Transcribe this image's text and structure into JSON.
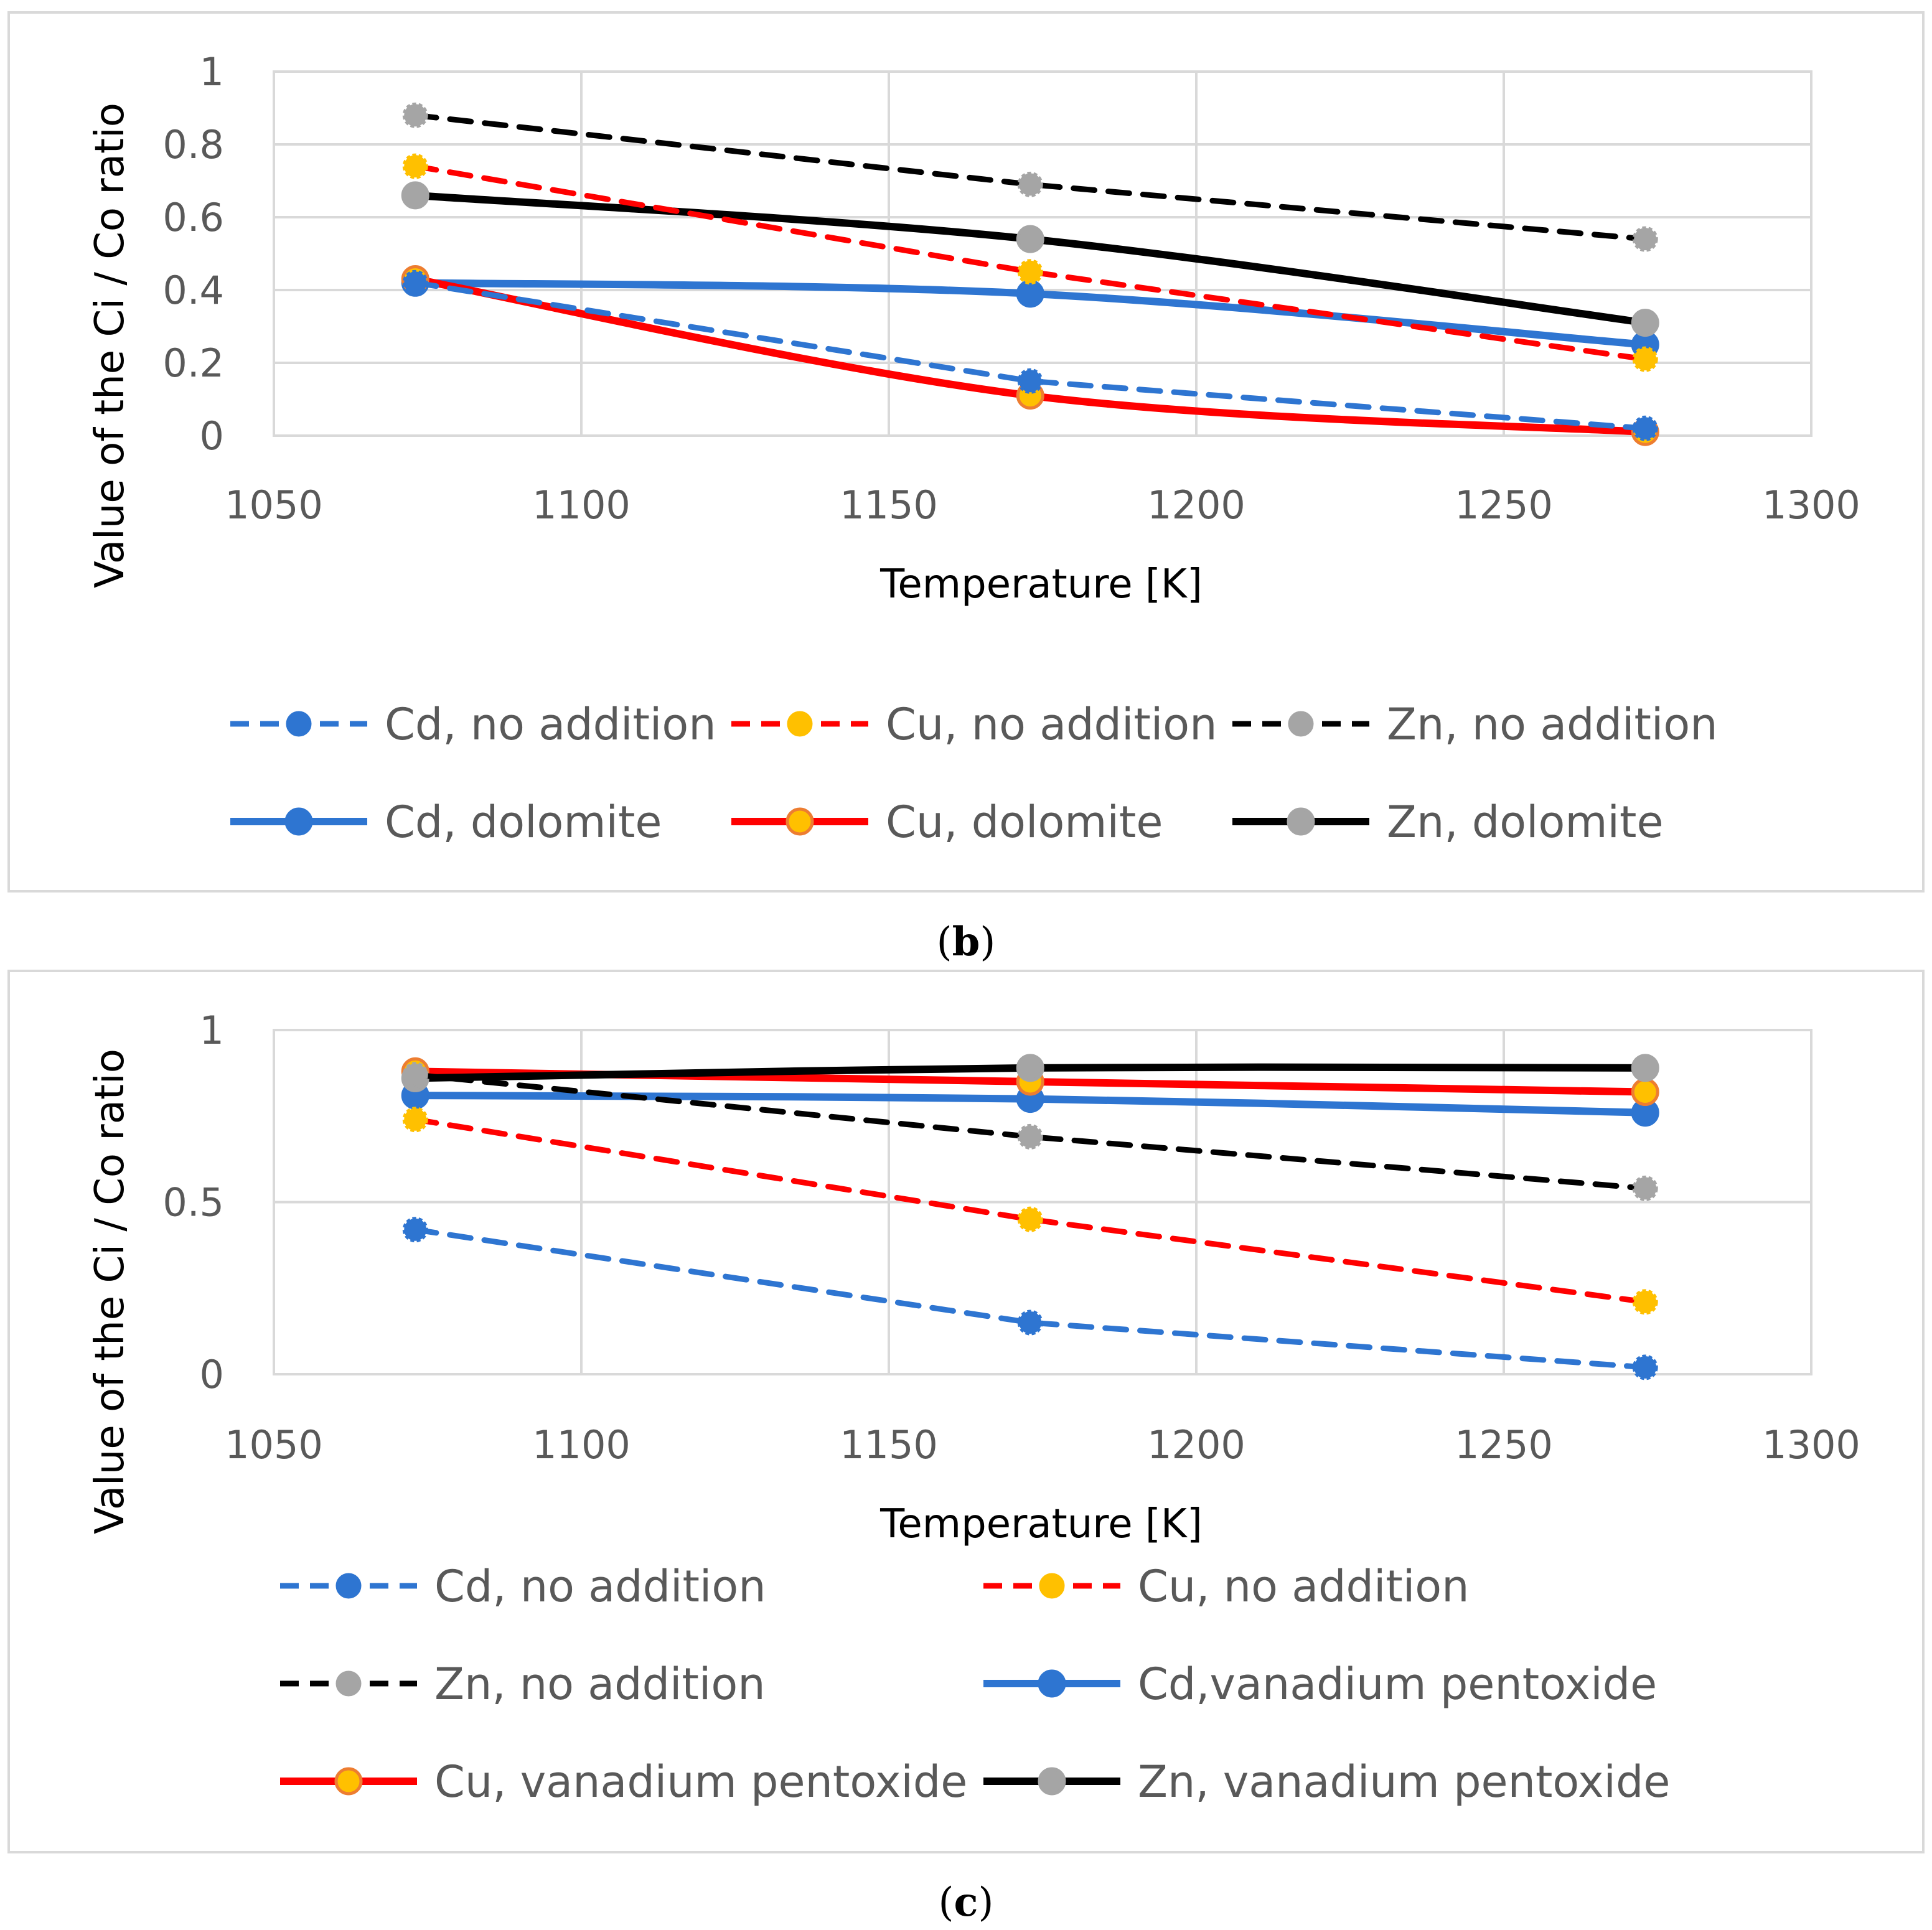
{
  "chart_data": [
    {
      "type": "line",
      "caption_letter": "b",
      "caption_open": "(",
      "caption_close": ")",
      "xlabel": "Temperature [K]",
      "ylabel": "Value of the Ci / Co ratio",
      "xlim": [
        1050,
        1300
      ],
      "ylim": [
        0,
        1
      ],
      "xticks": [
        1050,
        1100,
        1150,
        1200,
        1250,
        1300
      ],
      "yticks": [
        0,
        0.2,
        0.4,
        0.6,
        0.8,
        1
      ],
      "x": [
        1073,
        1173,
        1273
      ],
      "legend_columns": 3,
      "series": [
        {
          "name": "Cd, no addition",
          "values": [
            0.42,
            0.15,
            0.02
          ],
          "color": "#2E75D1",
          "dash": true,
          "marker_fill": "#2E75D1",
          "marker_stroke": "#2E75D1"
        },
        {
          "name": "Cu, no addition",
          "values": [
            0.74,
            0.45,
            0.21
          ],
          "color": "#FF0000",
          "dash": true,
          "marker_fill": "#FFC000",
          "marker_stroke": "#FFC000"
        },
        {
          "name": "Zn, no addition",
          "values": [
            0.88,
            0.69,
            0.54
          ],
          "color": "#000000",
          "dash": true,
          "marker_fill": "#A5A5A5",
          "marker_stroke": "#A5A5A5"
        },
        {
          "name": "Cd, dolomite",
          "values": [
            0.42,
            0.39,
            0.25
          ],
          "color": "#2E75D1",
          "dash": false,
          "marker_fill": "#2E75D1",
          "marker_stroke": "#2E75D1"
        },
        {
          "name": "Cu, dolomite",
          "values": [
            0.43,
            0.11,
            0.01
          ],
          "color": "#FF0000",
          "dash": false,
          "marker_fill": "#FFC000",
          "marker_stroke": "#ED7D31"
        },
        {
          "name": "Zn, dolomite",
          "values": [
            0.66,
            0.54,
            0.31
          ],
          "color": "#000000",
          "dash": false,
          "marker_fill": "#A5A5A5",
          "marker_stroke": "#A5A5A5"
        }
      ]
    },
    {
      "type": "line",
      "caption_letter": "c",
      "caption_open": "(",
      "caption_close": ")",
      "xlabel": "Temperature [K]",
      "ylabel": "Value of the Ci / Co ratio",
      "xlim": [
        1050,
        1300
      ],
      "ylim": [
        0,
        1
      ],
      "xticks": [
        1050,
        1100,
        1150,
        1200,
        1250,
        1300
      ],
      "yticks": [
        0,
        0.5,
        1
      ],
      "x": [
        1073,
        1173,
        1273
      ],
      "legend_columns": 2,
      "series": [
        {
          "name": "Cd, no addition",
          "values": [
            0.42,
            0.15,
            0.02
          ],
          "color": "#2E75D1",
          "dash": true,
          "marker_fill": "#2E75D1",
          "marker_stroke": "#2E75D1"
        },
        {
          "name": "Cu, no addition",
          "values": [
            0.74,
            0.45,
            0.21
          ],
          "color": "#FF0000",
          "dash": true,
          "marker_fill": "#FFC000",
          "marker_stroke": "#FFC000"
        },
        {
          "name": "Zn, no addition",
          "values": [
            0.87,
            0.69,
            0.54
          ],
          "color": "#000000",
          "dash": true,
          "marker_fill": "#A5A5A5",
          "marker_stroke": "#A5A5A5"
        },
        {
          "name": "Cd,vanadium pentoxide",
          "values": [
            0.81,
            0.8,
            0.76
          ],
          "color": "#2E75D1",
          "dash": false,
          "marker_fill": "#2E75D1",
          "marker_stroke": "#2E75D1"
        },
        {
          "name": "Cu, vanadium pentoxide",
          "values": [
            0.88,
            0.85,
            0.82
          ],
          "color": "#FF0000",
          "dash": false,
          "marker_fill": "#FFC000",
          "marker_stroke": "#ED7D31"
        },
        {
          "name": "Zn, vanadium pentoxide",
          "values": [
            0.86,
            0.89,
            0.89
          ],
          "color": "#000000",
          "dash": false,
          "marker_fill": "#A5A5A5",
          "marker_stroke": "#A5A5A5"
        }
      ]
    }
  ]
}
